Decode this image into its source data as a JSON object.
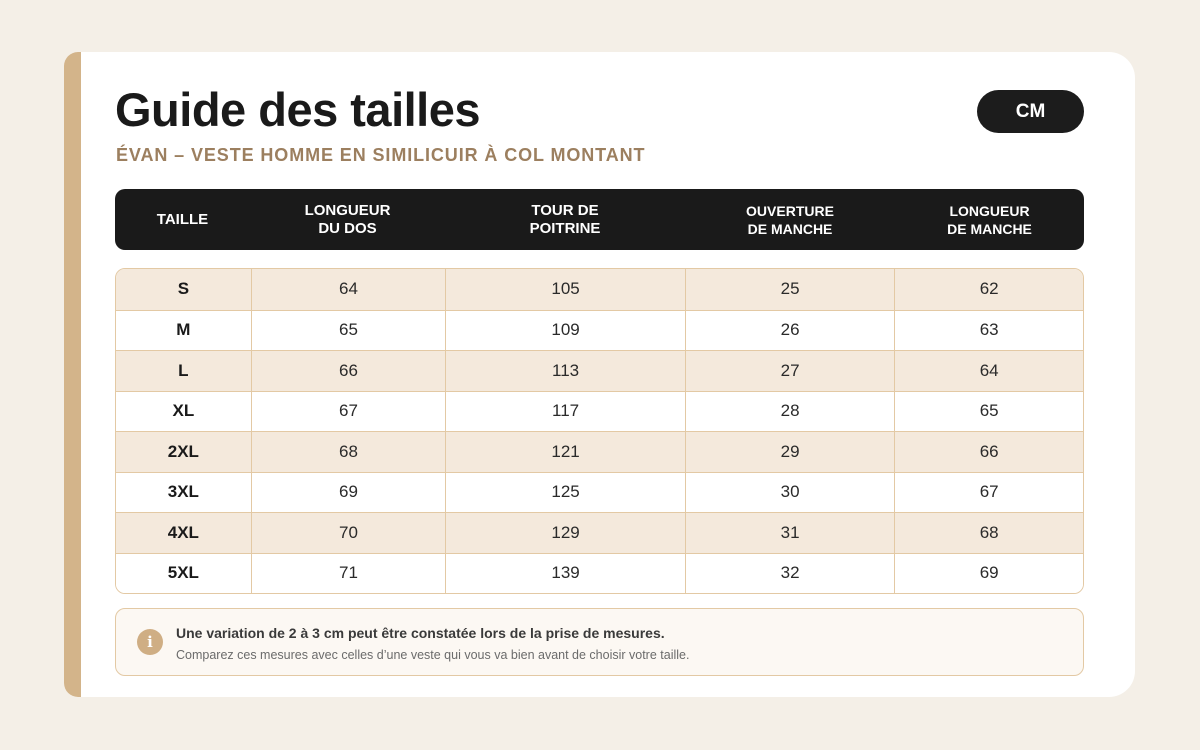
{
  "header": {
    "title": "Guide des tailles",
    "subtitle": "ÉVAN – VESTE HOMME EN SIMILICUIR À COL MONTANT",
    "unit_label": "CM"
  },
  "table": {
    "columns": [
      {
        "line1": "TAILLE",
        "line2": ""
      },
      {
        "line1": "LONGUEUR",
        "line2": "DU DOS"
      },
      {
        "line1": "TOUR DE",
        "line2": "POITRINE"
      },
      {
        "line1": "OUVERTURE",
        "line2": "DE MANCHE"
      },
      {
        "line1": "LONGUEUR",
        "line2": "DE MANCHE"
      }
    ],
    "rows": [
      {
        "size": "S",
        "longueur_dos": "64",
        "tour_poitrine": "105",
        "ouverture_manche": "25",
        "longueur_manche": "62"
      },
      {
        "size": "M",
        "longueur_dos": "65",
        "tour_poitrine": "109",
        "ouverture_manche": "26",
        "longueur_manche": "63"
      },
      {
        "size": "L",
        "longueur_dos": "66",
        "tour_poitrine": "113",
        "ouverture_manche": "27",
        "longueur_manche": "64"
      },
      {
        "size": "XL",
        "longueur_dos": "67",
        "tour_poitrine": "117",
        "ouverture_manche": "28",
        "longueur_manche": "65"
      },
      {
        "size": "2XL",
        "longueur_dos": "68",
        "tour_poitrine": "121",
        "ouverture_manche": "29",
        "longueur_manche": "66"
      },
      {
        "size": "3XL",
        "longueur_dos": "69",
        "tour_poitrine": "125",
        "ouverture_manche": "30",
        "longueur_manche": "67"
      },
      {
        "size": "4XL",
        "longueur_dos": "70",
        "tour_poitrine": "129",
        "ouverture_manche": "31",
        "longueur_manche": "68"
      },
      {
        "size": "5XL",
        "longueur_dos": "71",
        "tour_poitrine": "139",
        "ouverture_manche": "32",
        "longueur_manche": "69"
      }
    ]
  },
  "note": {
    "icon": "info-icon",
    "icon_glyph": "i",
    "main": "Une variation de 2 à 3 cm peut être constatée lors de la prise de mesures.",
    "sub": "Comparez ces mesures avec celles d’une veste qui vous va bien avant de choisir votre taille."
  },
  "colors": {
    "accent": "#d3b48a",
    "subtitle": "#9c7f5f",
    "header_bg": "#1a1a1a",
    "row_alt": "#f4e9dc",
    "border": "#e3c9a4"
  }
}
